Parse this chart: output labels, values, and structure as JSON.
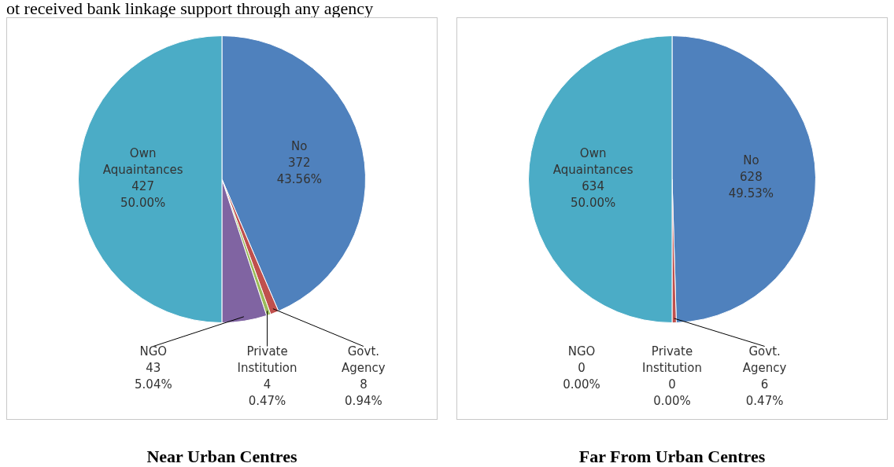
{
  "chart_data": [
    {
      "type": "pie",
      "title": "Near Urban Centres",
      "annotations": [
        "ot received bank linkage support through any agency"
      ],
      "categories": [
        "No",
        "Govt. Agency",
        "Private Institution",
        "NGO",
        "Own Aquaintances"
      ],
      "values": [
        43.56,
        0.94,
        0.47,
        5.04,
        50.0
      ],
      "value_labels": [
        "372\n43.56%",
        "8\n0.94%",
        "4\n0.47%",
        "43\n5.04%",
        "427\n50.00%"
      ],
      "colors": [
        "#4f81bd",
        "#c0504d",
        "#9bbb59",
        "#8064a2",
        "#4bacc6"
      ],
      "legend": false
    },
    {
      "type": "pie",
      "title": "Far From Urban Centres",
      "categories": [
        "No",
        "Govt. Agency",
        "Private Institution",
        "NGO",
        "Own Aquaintances"
      ],
      "values": [
        49.53,
        0.47,
        0,
        0,
        50.0
      ],
      "value_labels": [
        "628\n49.53%",
        "6\n0.47%",
        "0\n0.00%",
        "0\n0.00%",
        "634\n50.00%"
      ],
      "colors": [
        "#4f81bd",
        "#c0504d",
        "#9bbb59",
        "#8064a2",
        "#4bacc6"
      ],
      "legend": false
    }
  ]
}
